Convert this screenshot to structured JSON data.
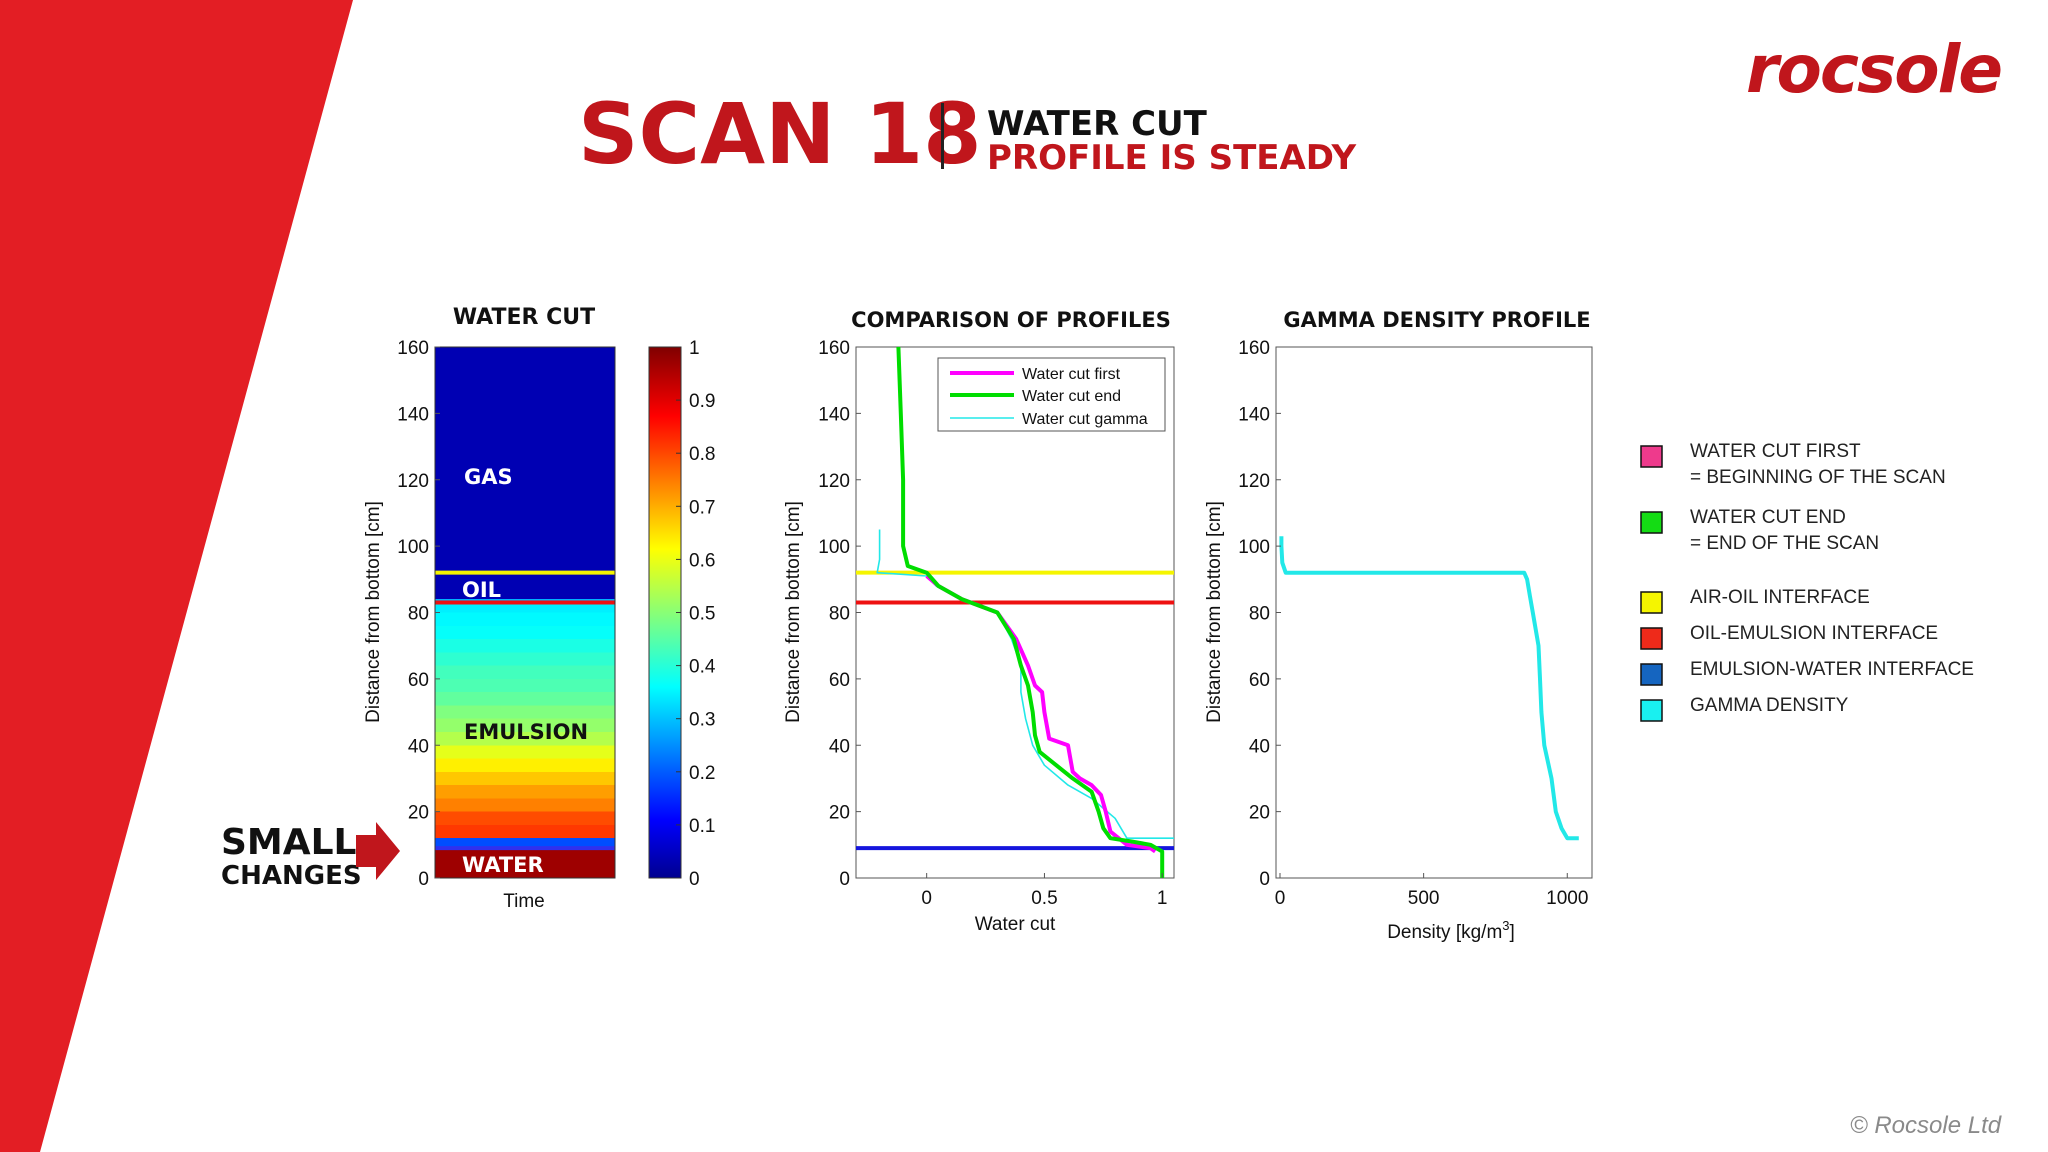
{
  "brand": {
    "logo_text": "rocsole",
    "copyright": "© Rocsole Ltd",
    "accent": "#e31e24",
    "dark_red": "#c0161c"
  },
  "header": {
    "scan": "SCAN 18",
    "line1": "WATER CUT",
    "line2": "PROFILE IS STEADY"
  },
  "callout": {
    "line1": "SMALL",
    "line2": "CHANGES"
  },
  "panel1": {
    "title": "WATER CUT",
    "ylabel": "Distance from bottom [cm]",
    "xlabel": "Time",
    "yticks": [
      "160",
      "140",
      "120",
      "100",
      "80",
      "60",
      "40",
      "20",
      "0"
    ],
    "colorbar_ticks": [
      "1",
      "0.9",
      "0.8",
      "0.7",
      "0.6",
      "0.5",
      "0.4",
      "0.3",
      "0.2",
      "0.1",
      "0"
    ],
    "labels": {
      "gas": "GAS",
      "oil": "OIL",
      "emulsion": "EMULSION",
      "water": "WATER"
    }
  },
  "panel2": {
    "title": "COMPARISON OF PROFILES",
    "ylabel": "Distance from bottom [cm]",
    "xlabel": "Water cut",
    "yticks": [
      "160",
      "140",
      "120",
      "100",
      "80",
      "60",
      "40",
      "20",
      "0"
    ],
    "xticks": [
      "0",
      "0.5",
      "1"
    ],
    "legend": [
      "Water cut first",
      "Water cut end",
      "Water cut gamma"
    ]
  },
  "panel3": {
    "title": "GAMMA DENSITY PROFILE",
    "ylabel": "Distance from bottom [cm]",
    "xlabel": "Density [kg/m",
    "xlabel_sup": "3",
    "xlabel_end": "]",
    "yticks": [
      "160",
      "140",
      "120",
      "100",
      "80",
      "60",
      "40",
      "20",
      "0"
    ],
    "xticks": [
      "0",
      "500",
      "1000"
    ]
  },
  "key": [
    {
      "color": "#ee3a8c",
      "line1": "WATER CUT FIRST",
      "line2": "=  BEGINNING OF THE SCAN"
    },
    {
      "color": "#14dc14",
      "line1": "WATER CUT END",
      "line2": "= END OF THE SCAN"
    },
    {
      "color": "#f5f500",
      "line1": "AIR-OIL INTERFACE",
      "line2": ""
    },
    {
      "color": "#ee2a1a",
      "line1": "OIL-EMULSION INTERFACE",
      "line2": ""
    },
    {
      "color": "#1565c0",
      "line1": "EMULSION-WATER INTERFACE",
      "line2": ""
    },
    {
      "color": "#19f0f0",
      "line1": "GAMMA DENSITY",
      "line2": ""
    }
  ],
  "chart_data": [
    {
      "type": "heatmap",
      "title": "WATER CUT",
      "xlabel": "Time",
      "ylabel": "Distance from bottom [cm]",
      "ylim": [
        0,
        160
      ],
      "clim": [
        0,
        1
      ],
      "colormap": "jet",
      "profile": {
        "y": [
          0,
          8,
          9,
          12,
          16,
          20,
          24,
          28,
          32,
          36,
          40,
          44,
          48,
          52,
          56,
          60,
          64,
          68,
          72,
          76,
          80,
          83,
          84,
          92,
          160
        ],
        "value": [
          0.97,
          0.97,
          0.2,
          0.82,
          0.8,
          0.75,
          0.72,
          0.68,
          0.64,
          0.6,
          0.55,
          0.52,
          0.5,
          0.47,
          0.45,
          0.44,
          0.42,
          0.4,
          0.38,
          0.37,
          0.36,
          0.3,
          0.05,
          0.05,
          0.05
        ]
      },
      "interfaces": {
        "air_oil": 92,
        "oil_emulsion": 83,
        "emulsion_water": 9
      },
      "annotations": [
        "GAS",
        "OIL",
        "EMULSION",
        "WATER"
      ]
    },
    {
      "type": "line",
      "title": "COMPARISON OF PROFILES",
      "xlabel": "Water cut",
      "ylabel": "Distance from bottom [cm]",
      "xlim": [
        -0.3,
        1.05
      ],
      "ylim": [
        0,
        160
      ],
      "series": [
        {
          "name": "Water cut first",
          "color": "#ff00ff",
          "x": [
            0.0,
            0.05,
            0.15,
            0.3,
            0.38,
            0.43,
            0.46,
            0.49,
            0.5,
            0.52,
            0.6,
            0.62,
            0.65,
            0.7,
            0.74,
            0.76,
            0.78,
            0.85,
            0.95,
            0.97
          ],
          "y": [
            91,
            88,
            84,
            80,
            72,
            64,
            58,
            56,
            50,
            42,
            40,
            32,
            30,
            28,
            25,
            20,
            14,
            10,
            9,
            8
          ]
        },
        {
          "name": "Water cut end",
          "color": "#00dd00",
          "x": [
            -0.12,
            -0.11,
            -0.1,
            -0.1,
            -0.08,
            0.0,
            0.05,
            0.15,
            0.3,
            0.37,
            0.4,
            0.43,
            0.45,
            0.46,
            0.48,
            0.55,
            0.62,
            0.7,
            0.73,
            0.75,
            0.78,
            0.87,
            0.95,
            1.0,
            1.0
          ],
          "y": [
            160,
            140,
            120,
            100,
            94,
            92,
            88,
            84,
            80,
            72,
            64,
            58,
            50,
            43,
            38,
            34,
            30,
            26,
            20,
            15,
            12,
            11,
            10,
            8,
            0
          ]
        },
        {
          "name": "Water cut gamma",
          "color": "#22e8e8",
          "x": [
            -0.2,
            -0.2,
            -0.21,
            0.0,
            0.04,
            0.15,
            0.3,
            0.36,
            0.4,
            0.4,
            0.42,
            0.45,
            0.5,
            0.6,
            0.7,
            0.8,
            0.85,
            1.05
          ],
          "y": [
            105,
            96,
            92,
            91,
            88,
            84,
            80,
            72,
            64,
            56,
            48,
            40,
            34,
            28,
            24,
            18,
            12,
            12
          ]
        }
      ],
      "hlines": [
        {
          "y": 92,
          "color": "#f5f500"
        },
        {
          "y": 83,
          "color": "#ee1111"
        },
        {
          "y": 9,
          "color": "#1515dd"
        }
      ]
    },
    {
      "type": "line",
      "title": "GAMMA DENSITY PROFILE",
      "xlabel": "Density [kg/m3]",
      "ylabel": "Distance from bottom [cm]",
      "xlim": [
        0,
        1100
      ],
      "ylim": [
        0,
        160
      ],
      "series": [
        {
          "name": "Gamma density",
          "color": "#22e8e8",
          "x": [
            5,
            5,
            8,
            20,
            850,
            860,
            870,
            880,
            900,
            905,
            910,
            920,
            945,
            960,
            980,
            1000,
            1040
          ],
          "y": [
            103,
            100,
            95,
            92,
            92,
            90,
            85,
            80,
            70,
            60,
            50,
            40,
            30,
            20,
            15,
            12,
            12
          ]
        }
      ]
    }
  ]
}
